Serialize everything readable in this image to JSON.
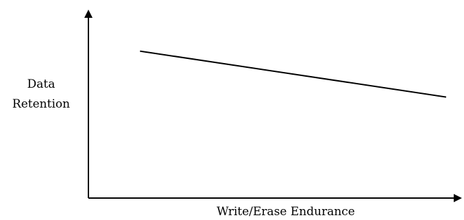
{
  "chart_data": {
    "type": "line",
    "title": "",
    "xlabel": "Write/Erase Endurance",
    "ylabel_lines": [
      "Data",
      "Retention"
    ],
    "xlim": [
      0,
      1
    ],
    "ylim": [
      0,
      1
    ],
    "grid": false,
    "axis_ticks": false,
    "colors": {
      "axis": "#000000",
      "series": "#000000"
    },
    "series": [
      {
        "x": [
          0.14,
          0.97
        ],
        "y": [
          0.8,
          0.55
        ]
      }
    ]
  }
}
